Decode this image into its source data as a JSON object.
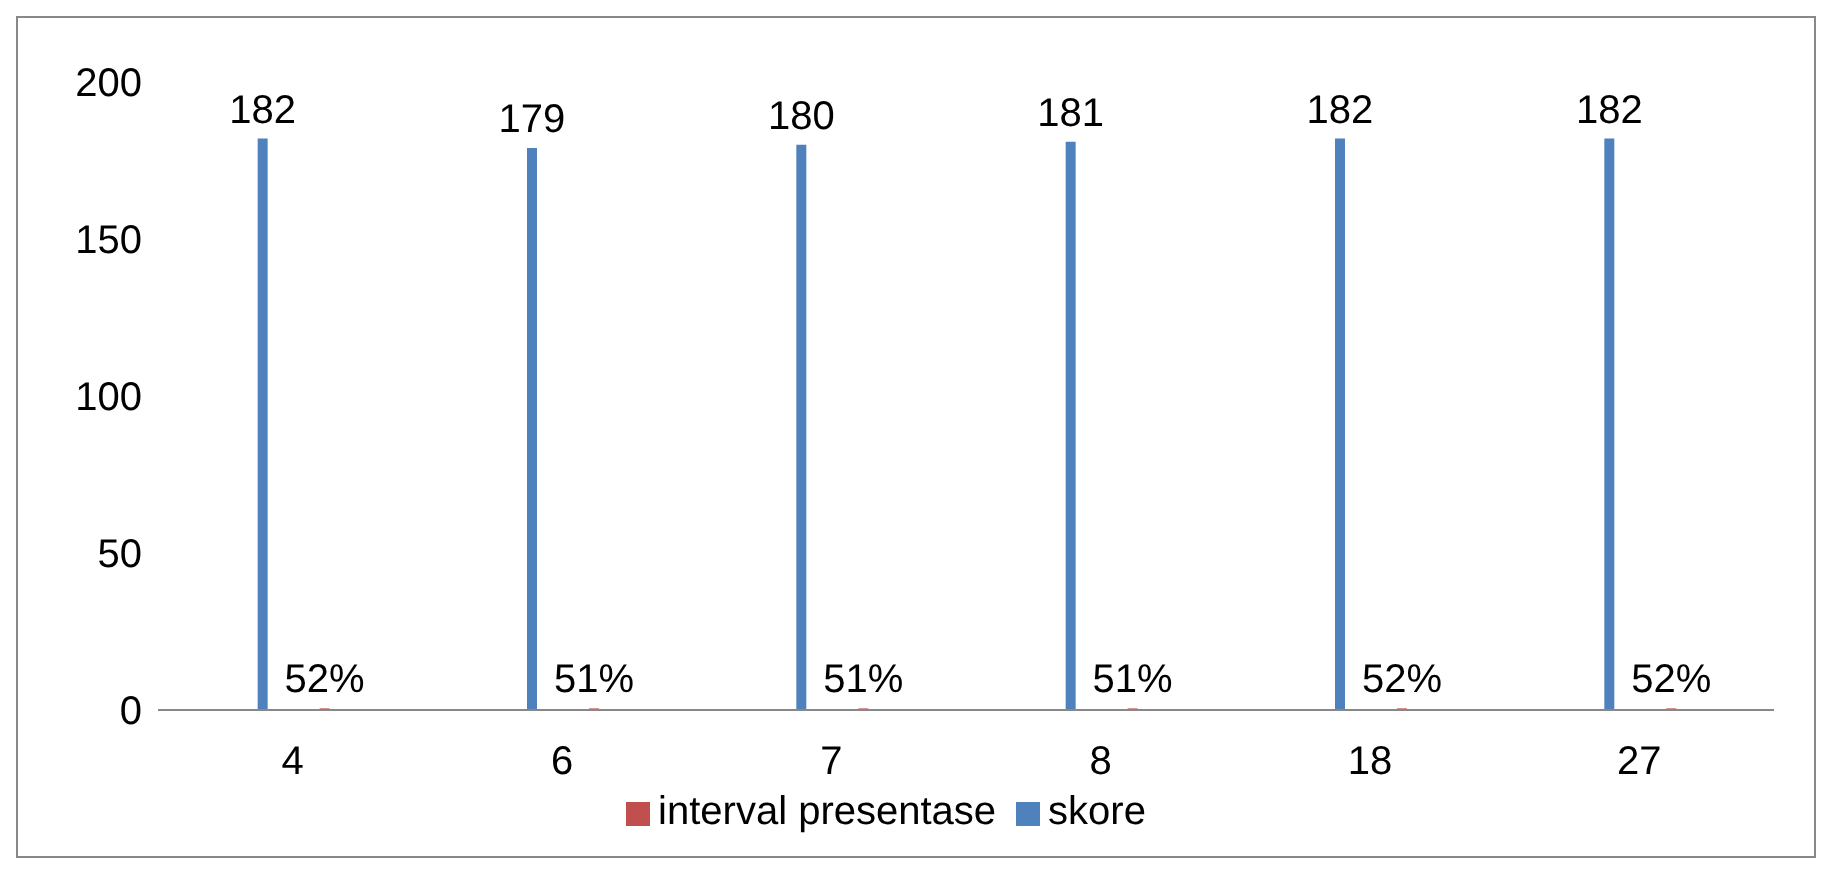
{
  "chart_data": {
    "type": "bar",
    "categories": [
      "4",
      "6",
      "7",
      "8",
      "18",
      "27"
    ],
    "series": [
      {
        "name": "skore",
        "color": "#4f81bd",
        "values": [
          182,
          179,
          180,
          181,
          182,
          182
        ],
        "value_labels": [
          "182",
          "179",
          "180",
          "181",
          "182",
          "182"
        ]
      },
      {
        "name": "interval presentase",
        "color": "#c0504d",
        "values": [
          0.52,
          0.51,
          0.51,
          0.51,
          0.52,
          0.52
        ],
        "value_labels": [
          "52%",
          "51%",
          "51%",
          "51%",
          "52%",
          "52%"
        ]
      }
    ],
    "ylim": [
      0,
      200
    ],
    "yticks": [
      0,
      50,
      100,
      150,
      200
    ],
    "grid": false,
    "legend": "bottom"
  }
}
